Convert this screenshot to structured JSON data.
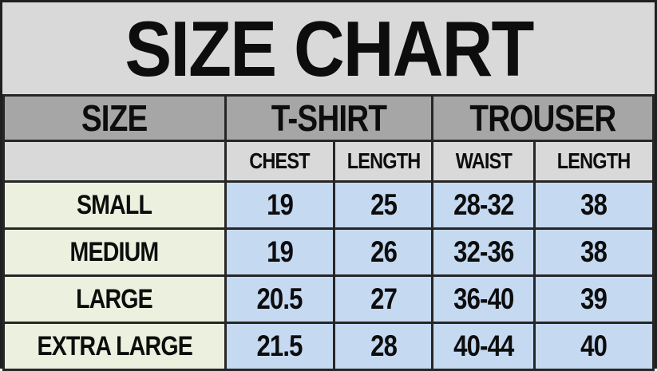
{
  "title": "SIZE CHART",
  "colors": {
    "title_bg": "#d9d9d9",
    "group_header_bg": "#a6a6a6",
    "subheader_bg": "#d9d9d9",
    "size_column_bg": "#ebf1de",
    "value_cell_bg": "#c5d9f1",
    "border": "#262626",
    "text": "#0d0d0d"
  },
  "table": {
    "col_groups": [
      {
        "label": "SIZE"
      },
      {
        "label": "T-SHIRT"
      },
      {
        "label": "TROUSER"
      }
    ],
    "sub_headers": [
      "",
      "CHEST",
      "LENGTH",
      "WAIST",
      "LENGTH"
    ],
    "rows": [
      {
        "size": "SMALL",
        "values": [
          "19",
          "25",
          "28-32",
          "38"
        ]
      },
      {
        "size": "MEDIUM",
        "values": [
          "19",
          "26",
          "32-36",
          "38"
        ]
      },
      {
        "size": "LARGE",
        "values": [
          "20.5",
          "27",
          "36-40",
          "39"
        ]
      },
      {
        "size": "EXTRA LARGE",
        "values": [
          "21.5",
          "28",
          "40-44",
          "40"
        ]
      }
    ]
  }
}
